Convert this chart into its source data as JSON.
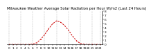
{
  "title": "Milwaukee Weather Average Solar Radiation per Hour W/m2 (Last 24 Hours)",
  "hours": [
    0,
    1,
    2,
    3,
    4,
    5,
    6,
    7,
    8,
    9,
    10,
    11,
    12,
    13,
    14,
    15,
    16,
    17,
    18,
    19,
    20,
    21,
    22,
    23
  ],
  "values": [
    0,
    0,
    0,
    0,
    0,
    0,
    5,
    40,
    120,
    230,
    370,
    490,
    560,
    530,
    450,
    340,
    200,
    90,
    20,
    2,
    0,
    0,
    0,
    0
  ],
  "line_color": "#cc0000",
  "bg_color": "#ffffff",
  "grid_color": "#888888",
  "ylim": [
    0,
    800
  ],
  "xlim_min": -0.5,
  "xlim_max": 23.5,
  "title_fontsize": 3.8,
  "tick_fontsize": 3.2,
  "right_tick_vals": [
    0,
    100,
    200,
    300,
    400,
    500,
    600,
    700,
    800
  ],
  "right_tick_labels": [
    "0",
    "1",
    "2",
    "3",
    "4",
    "5",
    "6",
    "7",
    "8"
  ],
  "xtick_vals": [
    0,
    1,
    2,
    3,
    4,
    5,
    6,
    7,
    8,
    9,
    10,
    11,
    12,
    13,
    14,
    15,
    16,
    17,
    18,
    19,
    20,
    21,
    22,
    23
  ],
  "grid_x_vals": [
    0,
    3,
    6,
    9,
    12,
    15,
    18,
    21,
    23
  ]
}
